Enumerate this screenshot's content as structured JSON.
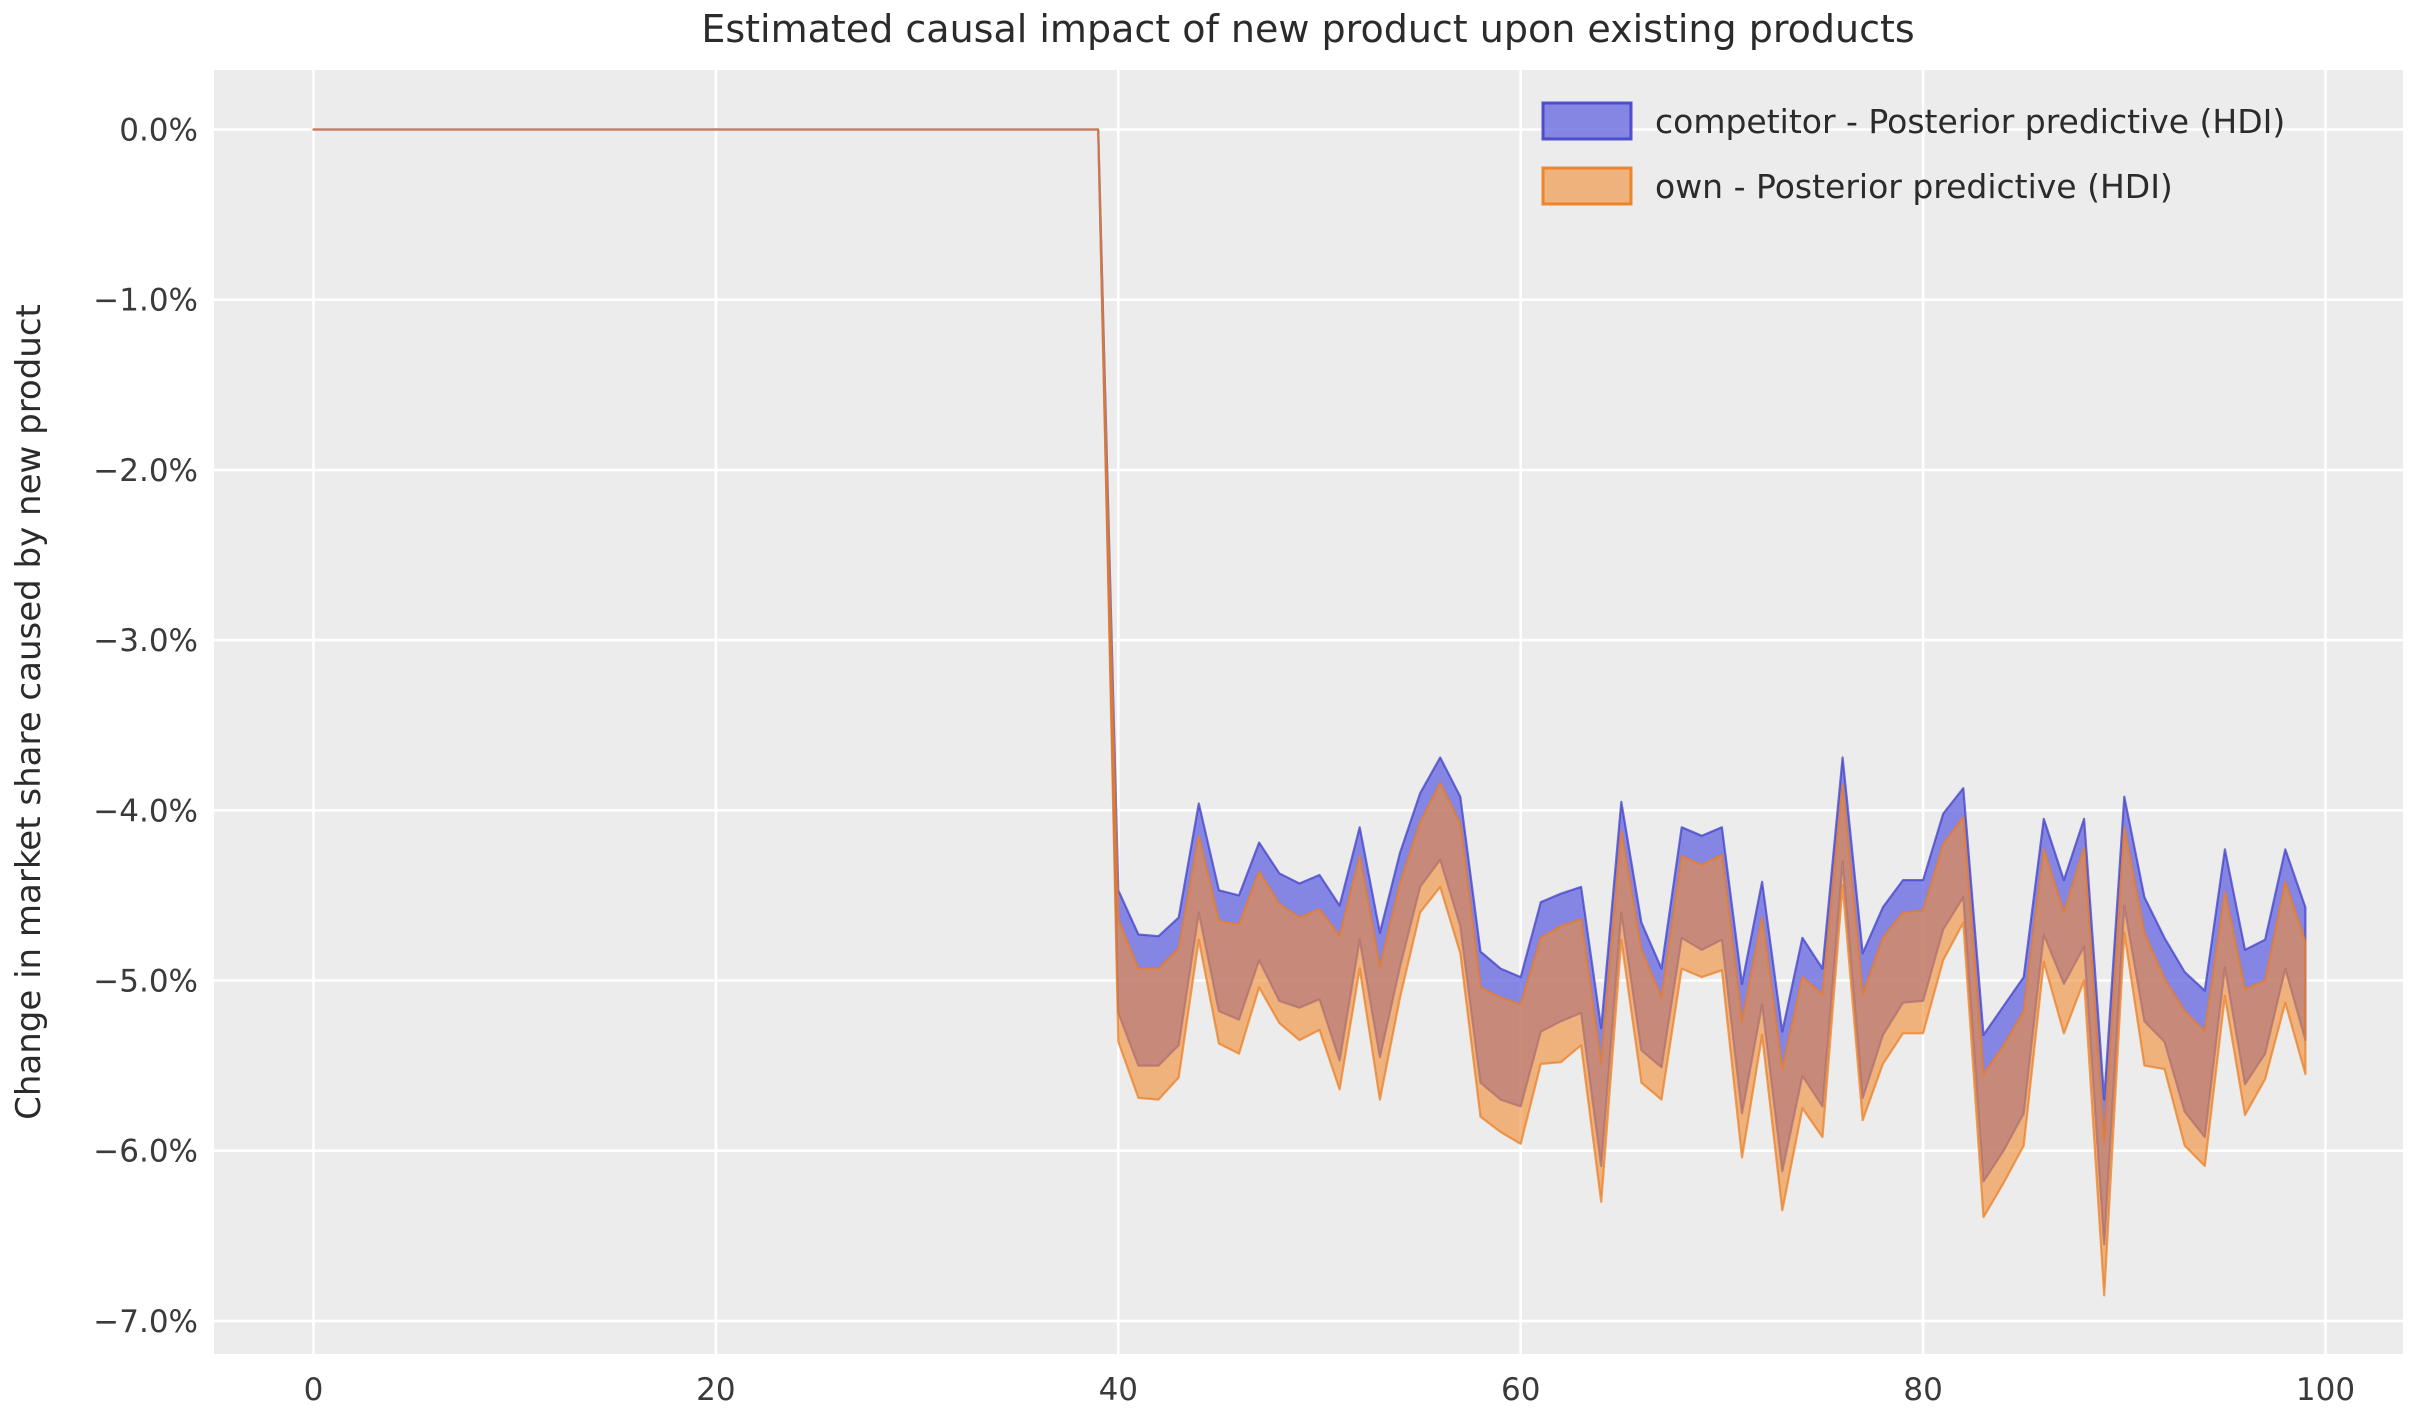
{
  "title": "Estimated causal impact of new product upon existing products",
  "ylabel": "Change in market share caused by new product",
  "plot": {
    "bg_color": "#ececec",
    "grid_color": "#ffffff",
    "figure_bg": "#ffffff",
    "pre_line_color": "#c4837d"
  },
  "legend": {
    "items": [
      {
        "label": "competitor - Posterior predictive (HDI)",
        "fill": "rgba(108,108,226,0.8)",
        "stroke": "rgba(66,66,200,0.9)"
      },
      {
        "label": "own - Posterior predictive (HDI)",
        "fill": "rgba(240,142,56,0.62)",
        "stroke": "rgba(236,125,32,0.9)"
      }
    ]
  },
  "axes": {
    "x_ticks": [
      0,
      20,
      40,
      60,
      80,
      100
    ],
    "y_tick_labels": [
      "0.0%",
      "−1.0%",
      "−2.0%",
      "−3.0%",
      "−4.0%",
      "−5.0%",
      "−6.0%",
      "−7.0%"
    ],
    "y_tick_values": [
      0,
      -1,
      -2,
      -3,
      -4,
      -5,
      -6,
      -7
    ],
    "xlim": [
      -5,
      104.3
    ],
    "ylim_percent": [
      -7.2,
      0.35
    ],
    "grid": true
  },
  "chart_data": {
    "type": "area",
    "title": "Estimated causal impact of new product upon existing products",
    "xlabel": "",
    "ylabel": "Change in market share caused by new product",
    "units": "percent",
    "intervention_time": 40,
    "pre_period_value": 0.0,
    "legend_position": "upper right",
    "x": [
      0,
      1,
      2,
      3,
      4,
      5,
      6,
      7,
      8,
      9,
      10,
      11,
      12,
      13,
      14,
      15,
      16,
      17,
      18,
      19,
      20,
      21,
      22,
      23,
      24,
      25,
      26,
      27,
      28,
      29,
      30,
      31,
      32,
      33,
      34,
      35,
      36,
      37,
      38,
      39,
      40,
      41,
      42,
      43,
      44,
      45,
      46,
      47,
      48,
      49,
      50,
      51,
      52,
      53,
      54,
      55,
      56,
      57,
      58,
      59,
      60,
      61,
      62,
      63,
      64,
      65,
      66,
      67,
      68,
      69,
      70,
      71,
      72,
      73,
      74,
      75,
      76,
      77,
      78,
      79,
      80,
      81,
      82,
      83,
      84,
      85,
      86,
      87,
      88,
      89,
      90,
      91,
      92,
      93,
      94,
      95,
      96,
      97,
      98,
      99
    ],
    "series": [
      {
        "name": "competitor - Posterior predictive (HDI)",
        "role": "hdi-band",
        "upper": [
          0,
          0,
          0,
          0,
          0,
          0,
          0,
          0,
          0,
          0,
          0,
          0,
          0,
          0,
          0,
          0,
          0,
          0,
          0,
          0,
          0,
          0,
          0,
          0,
          0,
          0,
          0,
          0,
          0,
          0,
          0,
          0,
          0,
          0,
          0,
          0,
          0,
          0,
          0,
          0,
          -4.47,
          -4.73,
          -4.74,
          -4.63,
          -3.96,
          -4.47,
          -4.5,
          -4.19,
          -4.37,
          -4.43,
          -4.38,
          -4.56,
          -4.1,
          -4.72,
          -4.25,
          -3.9,
          -3.69,
          -3.92,
          -4.83,
          -4.93,
          -4.98,
          -4.54,
          -4.49,
          -4.45,
          -5.28,
          -3.95,
          -4.66,
          -4.93,
          -4.1,
          -4.15,
          -4.1,
          -5.02,
          -4.42,
          -5.3,
          -4.75,
          -4.93,
          -3.69,
          -4.84,
          -4.57,
          -4.41,
          -4.41,
          -4.02,
          -3.87,
          -5.32,
          -5.15,
          -4.98,
          -4.05,
          -4.41,
          -4.05,
          -5.7,
          -3.92,
          -4.51,
          -4.75,
          -4.95,
          -5.06,
          -4.23,
          -4.82,
          -4.76,
          -4.23,
          -4.57
        ],
        "lower": [
          0,
          0,
          0,
          0,
          0,
          0,
          0,
          0,
          0,
          0,
          0,
          0,
          0,
          0,
          0,
          0,
          0,
          0,
          0,
          0,
          0,
          0,
          0,
          0,
          0,
          0,
          0,
          0,
          0,
          0,
          0,
          0,
          0,
          0,
          0,
          0,
          0,
          0,
          0,
          0,
          -5.19,
          -5.5,
          -5.5,
          -5.38,
          -4.6,
          -5.18,
          -5.23,
          -4.88,
          -5.12,
          -5.16,
          -5.11,
          -5.47,
          -4.76,
          -5.45,
          -4.92,
          -4.45,
          -4.29,
          -4.68,
          -5.6,
          -5.7,
          -5.74,
          -5.3,
          -5.24,
          -5.19,
          -6.09,
          -4.6,
          -5.41,
          -5.51,
          -4.75,
          -4.82,
          -4.76,
          -5.78,
          -5.14,
          -6.12,
          -5.56,
          -5.74,
          -4.3,
          -5.69,
          -5.32,
          -5.13,
          -5.12,
          -4.7,
          -4.51,
          -6.18,
          -6.0,
          -5.78,
          -4.73,
          -5.02,
          -4.8,
          -6.55,
          -4.56,
          -5.24,
          -5.36,
          -5.77,
          -5.92,
          -4.92,
          -5.61,
          -5.43,
          -4.93,
          -5.35
        ]
      },
      {
        "name": "own - Posterior predictive (HDI)",
        "role": "hdi-band",
        "upper": [
          0,
          0,
          0,
          0,
          0,
          0,
          0,
          0,
          0,
          0,
          0,
          0,
          0,
          0,
          0,
          0,
          0,
          0,
          0,
          0,
          0,
          0,
          0,
          0,
          0,
          0,
          0,
          0,
          0,
          0,
          0,
          0,
          0,
          0,
          0,
          0,
          0,
          0,
          0,
          0,
          -4.64,
          -4.93,
          -4.93,
          -4.81,
          -4.15,
          -4.65,
          -4.67,
          -4.36,
          -4.55,
          -4.63,
          -4.58,
          -4.74,
          -4.27,
          -4.92,
          -4.43,
          -4.07,
          -3.84,
          -4.08,
          -5.04,
          -5.1,
          -5.14,
          -4.75,
          -4.68,
          -4.64,
          -5.49,
          -4.12,
          -4.82,
          -5.1,
          -4.27,
          -4.32,
          -4.26,
          -5.24,
          -4.63,
          -5.52,
          -4.98,
          -5.08,
          -3.85,
          -5.08,
          -4.75,
          -4.6,
          -4.59,
          -4.2,
          -4.04,
          -5.55,
          -5.38,
          -5.18,
          -4.23,
          -4.6,
          -4.22,
          -5.95,
          -4.1,
          -4.72,
          -4.99,
          -5.18,
          -5.3,
          -4.48,
          -5.05,
          -5.0,
          -4.42,
          -4.77
        ],
        "lower": [
          0,
          0,
          0,
          0,
          0,
          0,
          0,
          0,
          0,
          0,
          0,
          0,
          0,
          0,
          0,
          0,
          0,
          0,
          0,
          0,
          0,
          0,
          0,
          0,
          0,
          0,
          0,
          0,
          0,
          0,
          0,
          0,
          0,
          0,
          0,
          0,
          0,
          0,
          0,
          0,
          -5.36,
          -5.69,
          -5.7,
          -5.57,
          -4.76,
          -5.37,
          -5.43,
          -5.04,
          -5.25,
          -5.35,
          -5.29,
          -5.64,
          -4.93,
          -5.7,
          -5.1,
          -4.6,
          -4.45,
          -4.84,
          -5.8,
          -5.89,
          -5.96,
          -5.49,
          -5.48,
          -5.38,
          -6.3,
          -4.76,
          -5.6,
          -5.7,
          -4.93,
          -4.98,
          -4.94,
          -6.04,
          -5.32,
          -6.35,
          -5.75,
          -5.92,
          -4.44,
          -5.82,
          -5.49,
          -5.31,
          -5.31,
          -4.88,
          -4.66,
          -6.39,
          -6.19,
          -5.97,
          -4.89,
          -5.31,
          -5.0,
          -6.85,
          -4.72,
          -5.5,
          -5.52,
          -5.97,
          -6.09,
          -5.09,
          -5.79,
          -5.58,
          -5.13,
          -5.55
        ]
      }
    ]
  }
}
